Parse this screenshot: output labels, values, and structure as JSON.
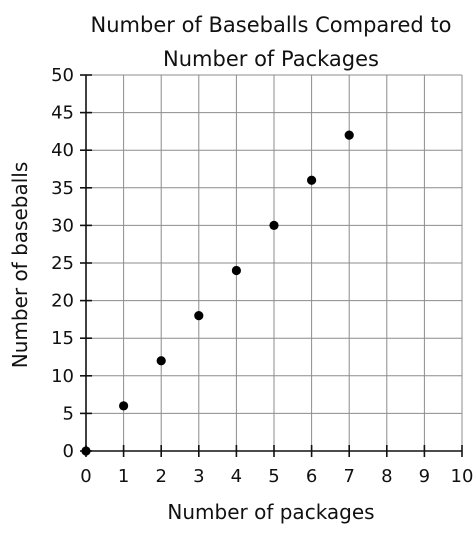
{
  "chart_data": {
    "type": "scatter",
    "title": "Number of Baseballs Compared to Number of Packages",
    "title_lines": [
      "Number of Baseballs Compared to",
      "Number of Packages"
    ],
    "xlabel": "Number of packages",
    "ylabel": "Number of baseballs",
    "xlim": [
      0,
      10
    ],
    "ylim": [
      0,
      50
    ],
    "x_ticks": [
      0,
      1,
      2,
      3,
      4,
      5,
      6,
      7,
      8,
      9,
      10
    ],
    "y_ticks": [
      0,
      5,
      10,
      15,
      20,
      25,
      30,
      35,
      40,
      45,
      50
    ],
    "grid": true,
    "legend": "none",
    "marker_color": "#000000",
    "points": [
      {
        "x": 0,
        "y": 0
      },
      {
        "x": 1,
        "y": 6
      },
      {
        "x": 2,
        "y": 12
      },
      {
        "x": 3,
        "y": 18
      },
      {
        "x": 4,
        "y": 24
      },
      {
        "x": 5,
        "y": 30
      },
      {
        "x": 6,
        "y": 36
      },
      {
        "x": 7,
        "y": 42
      }
    ]
  }
}
